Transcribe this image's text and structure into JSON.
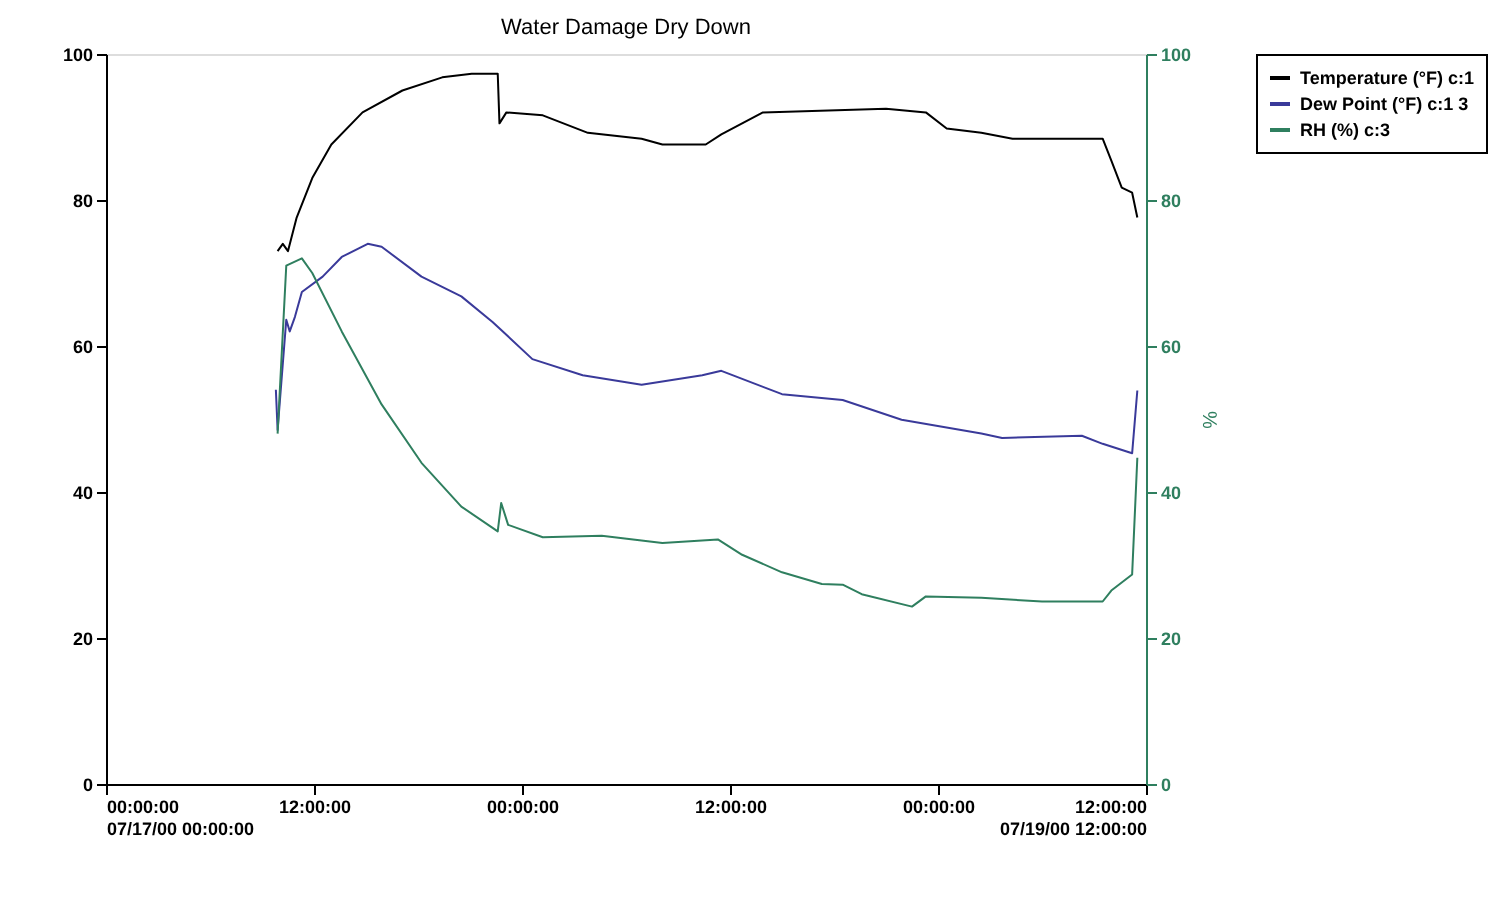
{
  "chart_data": {
    "type": "line",
    "title": "Water Damage Dry Down",
    "y2label": "%",
    "xlim": [
      "2000-07-17T00:00",
      "2000-07-19T12:00"
    ],
    "xticks": [
      {
        "value": "2000-07-17T00:00",
        "label": "00:00:00\n07/17/00 00:00:00"
      },
      {
        "value": "2000-07-17T12:00",
        "label": "12:00:00"
      },
      {
        "value": "2000-07-18T00:00",
        "label": "00:00:00"
      },
      {
        "value": "2000-07-18T12:00",
        "label": "12:00:00"
      },
      {
        "value": "2000-07-19T00:00",
        "label": "00:00:00"
      },
      {
        "value": "2000-07-19T12:00",
        "label": "12:00:00\n07/19/00 12:00:00"
      }
    ],
    "ylim": [
      0,
      100
    ],
    "yticks": [
      0,
      20,
      40,
      60,
      80,
      100
    ],
    "y2lim": [
      0,
      100
    ],
    "y2ticks": [
      0,
      20,
      40,
      60,
      80,
      100
    ],
    "grid": false,
    "legend": "top right",
    "marker": "none",
    "line_style": "solid",
    "series": [
      {
        "name": "Temperature (°F) c:1",
        "color": "#000000",
        "x": [
          "2000-07-17T09:54",
          "2000-07-17T10:12",
          "2000-07-17T10:30",
          "2000-07-17T11:00",
          "2000-07-17T11:54",
          "2000-07-17T13:00",
          "2000-07-17T14:48",
          "2000-07-17T17:06",
          "2000-07-17T19:24",
          "2000-07-17T21:06",
          "2000-07-17T22:36",
          "2000-07-17T22:42",
          "2000-07-17T23:06",
          "2000-07-18T01:12",
          "2000-07-18T03:48",
          "2000-07-18T06:54",
          "2000-07-18T08:06",
          "2000-07-18T10:36",
          "2000-07-18T11:30",
          "2000-07-18T13:54",
          "2000-07-18T21:00",
          "2000-07-18T23:18",
          "2000-07-19T00:30",
          "2000-07-19T02:30",
          "2000-07-19T04:18",
          "2000-07-19T09:30",
          "2000-07-19T10:00",
          "2000-07-19T10:36",
          "2000-07-19T11:12",
          "2000-07-19T11:30"
        ],
        "values": [
          73,
          74,
          73,
          77.6,
          83,
          87.6,
          92,
          95,
          96.8,
          97.3,
          97.3,
          90.5,
          92,
          91.6,
          89.2,
          88.4,
          87.6,
          87.6,
          89,
          92,
          92.5,
          92,
          89.8,
          89.2,
          88.4,
          88.4,
          85.4,
          81.7,
          81,
          77.6
        ]
      },
      {
        "name": "Dew Point (°F) c:1 3",
        "color": "#3a3a9a",
        "x": [
          "2000-07-17T09:48",
          "2000-07-17T09:54",
          "2000-07-17T10:24",
          "2000-07-17T10:36",
          "2000-07-17T10:54",
          "2000-07-17T11:18",
          "2000-07-17T12:30",
          "2000-07-17T13:36",
          "2000-07-17T15:06",
          "2000-07-17T15:54",
          "2000-07-17T18:12",
          "2000-07-17T20:30",
          "2000-07-17T22:18",
          "2000-07-18T00:36",
          "2000-07-18T03:30",
          "2000-07-18T06:54",
          "2000-07-18T10:24",
          "2000-07-18T11:30",
          "2000-07-18T15:00",
          "2000-07-18T18:30",
          "2000-07-18T21:54",
          "2000-07-19T02:30",
          "2000-07-19T03:42",
          "2000-07-19T08:18",
          "2000-07-19T09:30",
          "2000-07-19T11:12",
          "2000-07-19T11:30"
        ],
        "values": [
          54,
          48.5,
          63.6,
          62,
          64,
          67.4,
          69.5,
          72.2,
          74,
          73.6,
          69.5,
          66.8,
          63.3,
          58.2,
          56,
          54.7,
          56,
          56.6,
          53.4,
          52.6,
          49.9,
          48,
          47.4,
          47.7,
          46.6,
          45.3,
          53.9
        ]
      },
      {
        "name": "RH (%) c:3",
        "color": "#2f7f5f",
        "axis": "y2",
        "x": [
          "2000-07-17T09:54",
          "2000-07-17T10:24",
          "2000-07-17T11:18",
          "2000-07-17T11:54",
          "2000-07-17T13:36",
          "2000-07-17T15:54",
          "2000-07-17T18:12",
          "2000-07-17T20:30",
          "2000-07-17T22:36",
          "2000-07-17T22:48",
          "2000-07-17T23:12",
          "2000-07-18T01:12",
          "2000-07-18T04:36",
          "2000-07-18T08:06",
          "2000-07-18T11:18",
          "2000-07-18T12:42",
          "2000-07-18T15:00",
          "2000-07-18T17:18",
          "2000-07-18T18:30",
          "2000-07-18T19:36",
          "2000-07-18T22:30",
          "2000-07-18T23:18",
          "2000-07-19T02:30",
          "2000-07-19T06:00",
          "2000-07-19T09:30",
          "2000-07-19T10:00",
          "2000-07-19T11:12",
          "2000-07-19T11:30"
        ],
        "values": [
          48,
          71,
          72,
          70,
          62,
          52,
          44,
          38,
          34.6,
          38.5,
          35.5,
          33.8,
          34,
          33,
          33.5,
          31.4,
          29,
          27.4,
          27.3,
          26,
          24.3,
          25.7,
          25.5,
          25,
          25,
          26.5,
          28.7,
          44.7
        ]
      }
    ]
  }
}
